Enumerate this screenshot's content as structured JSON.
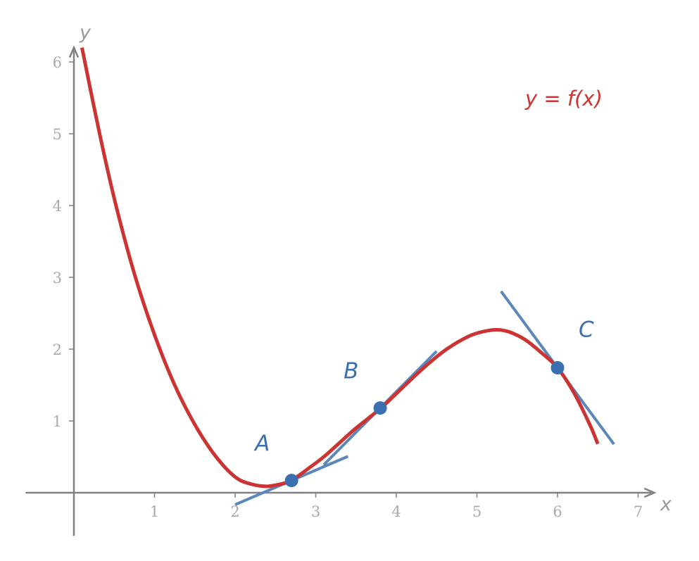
{
  "colors": {
    "curve": "#cc3333",
    "tangent": "#5b87bb",
    "point": "#3a6fb0",
    "axis": "#808080",
    "tick_text": "#aaaaaa"
  },
  "chart_data": {
    "type": "line",
    "title": "",
    "xlabel": "x",
    "ylabel": "y",
    "xlim": [
      -0.6,
      7.2
    ],
    "ylim": [
      -0.6,
      6.2
    ],
    "x_ticks": [
      1,
      2,
      3,
      4,
      5,
      6,
      7
    ],
    "y_ticks": [
      1,
      2,
      3,
      4,
      5,
      6
    ],
    "grid": false,
    "series": [
      {
        "name": "y = f(x)",
        "x": [
          0.1,
          0.3,
          0.5,
          0.75,
          1.0,
          1.25,
          1.5,
          1.75,
          2.0,
          2.2,
          2.4,
          2.6,
          2.7,
          2.9,
          3.1,
          3.3,
          3.5,
          3.8,
          4.0,
          4.3,
          4.6,
          4.9,
          5.1,
          5.25,
          5.4,
          5.6,
          5.8,
          6.0,
          6.2,
          6.4,
          6.5
        ],
        "y": [
          6.2,
          5.1,
          4.1,
          3.05,
          2.2,
          1.5,
          0.95,
          0.52,
          0.22,
          0.12,
          0.09,
          0.13,
          0.17,
          0.33,
          0.5,
          0.7,
          0.9,
          1.17,
          1.38,
          1.7,
          1.98,
          2.18,
          2.25,
          2.27,
          2.24,
          2.13,
          1.95,
          1.74,
          1.4,
          0.95,
          0.68
        ]
      }
    ],
    "points": [
      {
        "label": "A",
        "x": 2.7,
        "y": 0.17,
        "slope": 0.48,
        "tangent_x": [
          2.0,
          3.4
        ]
      },
      {
        "label": "B",
        "x": 3.8,
        "y": 1.18,
        "slope": 1.13,
        "tangent_x": [
          3.1,
          4.5
        ]
      },
      {
        "label": "C",
        "x": 6.0,
        "y": 1.74,
        "slope": -1.52,
        "tangent_x": [
          5.3,
          6.7
        ]
      }
    ],
    "annotation": "y = f(x)"
  }
}
